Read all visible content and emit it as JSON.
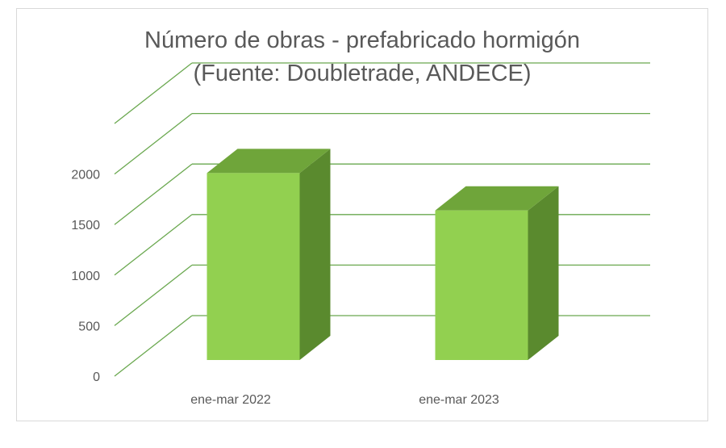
{
  "chart_data": {
    "type": "bar",
    "title": "Número de obras - prefabricado hormigón",
    "subtitle": "(Fuente: Doubletrade, ANDECE)",
    "categories": [
      "ene-mar 2022",
      "ene-mar 2023"
    ],
    "values": [
      1850,
      1480
    ],
    "ylim": [
      0,
      2500
    ],
    "yticks": [
      "0",
      "500",
      "1000",
      "1500",
      "2000"
    ],
    "grid": true,
    "style": "3d-column",
    "colors": {
      "bar_front": "#92d050",
      "bar_top": "#6fa53a",
      "bar_side": "#5a8a2e",
      "gridline": "#6aa84f",
      "text": "#595959"
    }
  }
}
